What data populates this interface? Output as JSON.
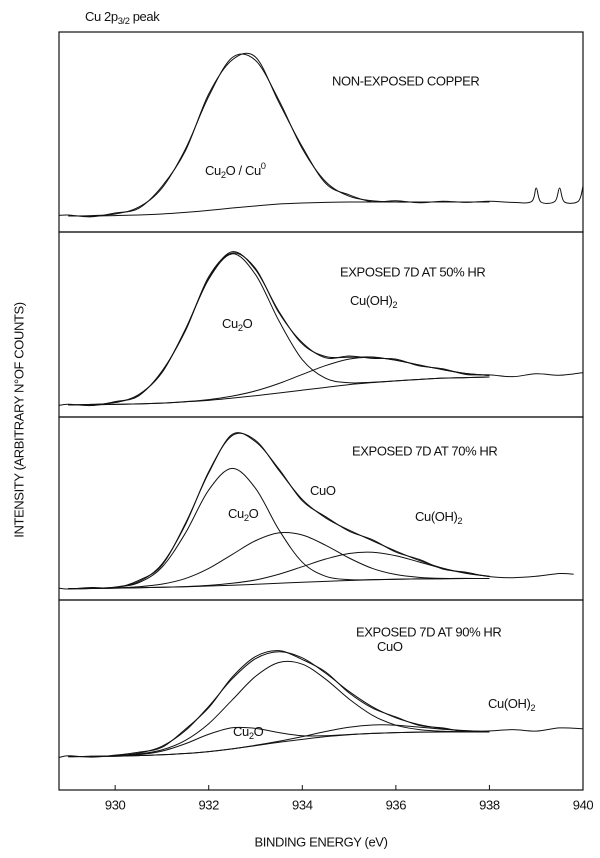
{
  "figure": {
    "title": [
      {
        "text": "Cu 2p"
      },
      {
        "sub": "3/2"
      },
      {
        "text": " peak"
      }
    ],
    "ylabel": "INTENSITY (ARBITRARY N°OF COUNTS)"
  },
  "chart_data": [
    {
      "type": "line",
      "title": "NON-EXPOSED COPPER",
      "color": "#111111",
      "xlim": [
        928.8,
        940
      ],
      "ylim": [
        0,
        100
      ],
      "annotations": [
        [
          {
            "text": "Cu"
          },
          {
            "sub": "2"
          },
          {
            "text": "O / Cu"
          },
          {
            "sup": "0"
          }
        ]
      ],
      "x": [
        929,
        929.5,
        930,
        930.5,
        931,
        931.5,
        932,
        932.5,
        933,
        933.5,
        934,
        934.5,
        935,
        935.5,
        936,
        936.5,
        937,
        937.5,
        938
      ],
      "series": [
        {
          "values": [
            8,
            8,
            8.2,
            8.5,
            9,
            9.8,
            10.8,
            12,
            13,
            14,
            14.5,
            14.8,
            15,
            15,
            15,
            15,
            15,
            15,
            15
          ]
        },
        {
          "values": [
            8,
            8.2,
            9,
            12.4,
            21.9,
            41.4,
            67.8,
            87.2,
            85.8,
            65.9,
            41.7,
            25.2,
            17.9,
            15.6,
            15,
            15,
            15,
            15,
            15
          ]
        },
        {
          "x": [
            928.8,
            929,
            929.5,
            930,
            930.5,
            931,
            931.5,
            932,
            932.5,
            933,
            933.5,
            934,
            934.5,
            935,
            935.5,
            936,
            936.5,
            937,
            937.5,
            938,
            938.5,
            938.9,
            939,
            939.1,
            939.4,
            939.5,
            939.6,
            939.9,
            940
          ],
          "values": [
            8.3,
            8.5,
            7.6,
            9.5,
            11.8,
            22.8,
            40.5,
            69,
            86,
            87.5,
            64.8,
            42.6,
            24.3,
            18.6,
            15.1,
            15.6,
            14.6,
            15.4,
            14.8,
            15.4,
            14.8,
            15.2,
            22,
            15,
            15.3,
            22,
            15.1,
            15.4,
            23
          ]
        }
      ]
    },
    {
      "type": "line",
      "title": "EXPOSED 7D AT 50% HR",
      "color": "#111111",
      "xlim": [
        928.8,
        940
      ],
      "ylim": [
        0,
        100
      ],
      "annotations": [
        [
          {
            "text": "Cu"
          },
          {
            "sub": "2"
          },
          {
            "text": "O"
          }
        ],
        [
          {
            "text": "Cu(OH)"
          },
          {
            "sub": "2"
          }
        ]
      ],
      "x": [
        929,
        929.5,
        930,
        930.5,
        931,
        931.5,
        932,
        932.5,
        933,
        933.5,
        934,
        934.5,
        935,
        935.5,
        936,
        936.5,
        937,
        937.5,
        938
      ],
      "series": [
        {
          "values": [
            6.5,
            6.6,
            6.8,
            7.1,
            7.5,
            8.2,
            9,
            10.2,
            11.5,
            13,
            14.5,
            16,
            17.5,
            18.6,
            19.5,
            20.3,
            21,
            21.3,
            21.6
          ]
        },
        {
          "values": [
            6.5,
            6.8,
            7.8,
            12.0,
            24.0,
            47.2,
            74.5,
            88.2,
            77.0,
            52.0,
            31.0,
            20.9,
            18.5,
            18.8,
            19.5,
            20.3,
            21,
            21.3,
            21.6
          ]
        },
        {
          "values": [
            6.5,
            6.6,
            6.8,
            7.1,
            7.5,
            8.3,
            9.4,
            11.3,
            14.1,
            18.1,
            23.0,
            27.8,
            31.3,
            32.2,
            30.7,
            28.1,
            25.6,
            23.5,
            22.5
          ]
        },
        {
          "values": [
            6.5,
            6.8,
            7.8,
            12.0,
            24.0,
            47.3,
            74.9,
            89.3,
            79.6,
            57.1,
            39.5,
            32.7,
            32.3,
            32.4,
            30.7,
            28.1,
            25.6,
            23.5,
            22.5
          ]
        },
        {
          "x": [
            928.8,
            929,
            929.5,
            930,
            930.5,
            931,
            931.5,
            932,
            932.5,
            933,
            933.5,
            934,
            934.5,
            935,
            935.5,
            936,
            936.5,
            937,
            937.5,
            938,
            938.5,
            939,
            939.5,
            940
          ],
          "values": [
            6.3,
            6.9,
            6.2,
            8.3,
            11.4,
            24.8,
            46.5,
            75.8,
            88.6,
            80.3,
            56.4,
            40.2,
            32.0,
            33.0,
            31.7,
            31.3,
            27.6,
            26.1,
            23.0,
            22.8,
            21.8,
            23.4,
            22.6,
            24.0
          ]
        }
      ]
    },
    {
      "type": "line",
      "title": "EXPOSED 7D AT 70% HR",
      "color": "#111111",
      "xlim": [
        928.8,
        940
      ],
      "ylim": [
        0,
        105
      ],
      "annotations": [
        [
          {
            "text": "Cu"
          },
          {
            "sub": "2"
          },
          {
            "text": "O"
          }
        ],
        [
          {
            "text": "CuO"
          }
        ],
        [
          {
            "text": "Cu(OH)"
          },
          {
            "sub": "2"
          }
        ]
      ],
      "x": [
        929,
        929.5,
        930,
        930.5,
        931,
        931.5,
        932,
        932.5,
        933,
        933.5,
        934,
        934.5,
        935,
        935.5,
        936,
        936.5,
        937,
        937.5,
        938
      ],
      "series": [
        {
          "values": [
            6.5,
            6.6,
            6.8,
            7.0,
            7.3,
            7.6,
            8.0,
            8.5,
            9.0,
            9.6,
            10.2,
            10.7,
            11.2,
            11.6,
            11.9,
            12.1,
            12.2,
            12.3,
            12.3
          ]
        },
        {
          "values": [
            6.5,
            6.7,
            7.3,
            9.9,
            18.8,
            38.3,
            63.1,
            75.5,
            64.1,
            40.3,
            21.7,
            13.6,
            11.7,
            11.7,
            11.9,
            12.1,
            12.2,
            12.3,
            12.3
          ]
        },
        {
          "values": [
            6.5,
            6.6,
            6.9,
            7.6,
            9.1,
            12.3,
            18.1,
            26.1,
            34.0,
            38.5,
            37.3,
            31.4,
            24.1,
            18.1,
            14.6,
            13.0,
            12.4,
            12.4,
            12.3
          ]
        },
        {
          "values": [
            6.5,
            6.6,
            6.8,
            7.0,
            7.3,
            7.7,
            8.4,
            9.6,
            11.5,
            14.8,
            19.1,
            23.5,
            26.7,
            27.4,
            25.4,
            21.8,
            18.1,
            15.3,
            13.6
          ]
        },
        {
          "values": [
            6.5,
            6.7,
            7.4,
            10.5,
            20.6,
            43.1,
            73.6,
            94.3,
            91.6,
            74.4,
            57.7,
            47.1,
            40.1,
            34.0,
            28.1,
            22.7,
            18.3,
            15.4,
            13.6
          ]
        },
        {
          "x": [
            928.8,
            929,
            929.5,
            930,
            930.5,
            931,
            931.5,
            932,
            932.5,
            933,
            933.5,
            934,
            934.5,
            935,
            935.5,
            936,
            936.5,
            937,
            937.5,
            938,
            938.5,
            939,
            939.5,
            939.8
          ],
          "values": [
            6.8,
            6.3,
            7.2,
            7.0,
            11.2,
            20.0,
            43.8,
            72.9,
            95.0,
            90.8,
            75.2,
            56.9,
            47.8,
            39.5,
            34.6,
            27.5,
            23.3,
            17.8,
            15.9,
            13.4,
            12.8,
            13.6,
            15.2,
            14.8
          ]
        }
      ]
    },
    {
      "type": "line",
      "title": "EXPOSED 7D AT 90% HR",
      "color": "#111111",
      "xlim": [
        928.8,
        940
      ],
      "ylim": [
        0,
        90
      ],
      "xticks": [
        930,
        932,
        934,
        936,
        938,
        940
      ],
      "xlabel": "BINDING ENERGY (eV)",
      "annotations": [
        [
          {
            "text": "CuO"
          }
        ],
        [
          {
            "text": "Cu(OH)"
          },
          {
            "sub": "2"
          }
        ],
        [
          {
            "text": "Cu"
          },
          {
            "sub": "2"
          },
          {
            "text": "O"
          }
        ]
      ],
      "x": [
        929,
        929.5,
        930,
        930.5,
        931,
        931.5,
        932,
        932.5,
        933,
        933.5,
        934,
        934.5,
        935,
        935.5,
        936,
        936.5,
        937,
        937.5,
        938
      ],
      "series": [
        {
          "values": [
            15.8,
            15.9,
            16.0,
            16.3,
            16.7,
            17.3,
            18.2,
            19.5,
            21,
            22.6,
            24,
            25.3,
            26.2,
            26.8,
            27.2,
            27.4,
            27.5,
            27.5,
            27.5
          ]
        },
        {
          "values": [
            15.8,
            15.9,
            16.1,
            16.7,
            18.4,
            21.9,
            26.4,
            29.5,
            29.2,
            27.2,
            25.7,
            25.7,
            26.3,
            26.8,
            27.2,
            27.4,
            27.5,
            27.5,
            27.5
          ]
        },
        {
          "values": [
            15.8,
            15.9,
            16.2,
            17.0,
            19.0,
            23.5,
            31.4,
            42.6,
            53.8,
            60.4,
            59.6,
            52.5,
            43.1,
            35.4,
            30.7,
            28.6,
            27.8,
            27.6,
            27.5
          ]
        },
        {
          "values": [
            15.8,
            15.9,
            16.0,
            16.3,
            16.7,
            17.3,
            18.2,
            19.5,
            21.2,
            23.1,
            25.3,
            27.7,
            29.7,
            30.8,
            30.7,
            29.8,
            28.8,
            28.0,
            27.7
          ]
        },
        {
          "values": [
            15.8,
            15.9,
            16.3,
            17.4,
            20.7,
            28.1,
            39.6,
            52.6,
            62.2,
            65.5,
            62.6,
            55.3,
            46.7,
            39.4,
            34.2,
            31.0,
            29.1,
            28.1,
            27.7
          ]
        },
        {
          "x": [
            928.8,
            929,
            929.5,
            930,
            930.5,
            931,
            931.5,
            932,
            932.5,
            933,
            933.5,
            934,
            934.5,
            935,
            935.5,
            936,
            936.5,
            937,
            937.5,
            938,
            938.5,
            939,
            939.5,
            940
          ],
          "values": [
            15.4,
            16.2,
            15.6,
            16.5,
            17.9,
            20.2,
            28.8,
            39.0,
            53.4,
            63.2,
            66.0,
            61.8,
            55.9,
            46.0,
            38.8,
            34.6,
            30.6,
            29.4,
            27.6,
            28.0,
            28.6,
            27.9,
            29.4,
            29.0
          ]
        }
      ]
    }
  ]
}
